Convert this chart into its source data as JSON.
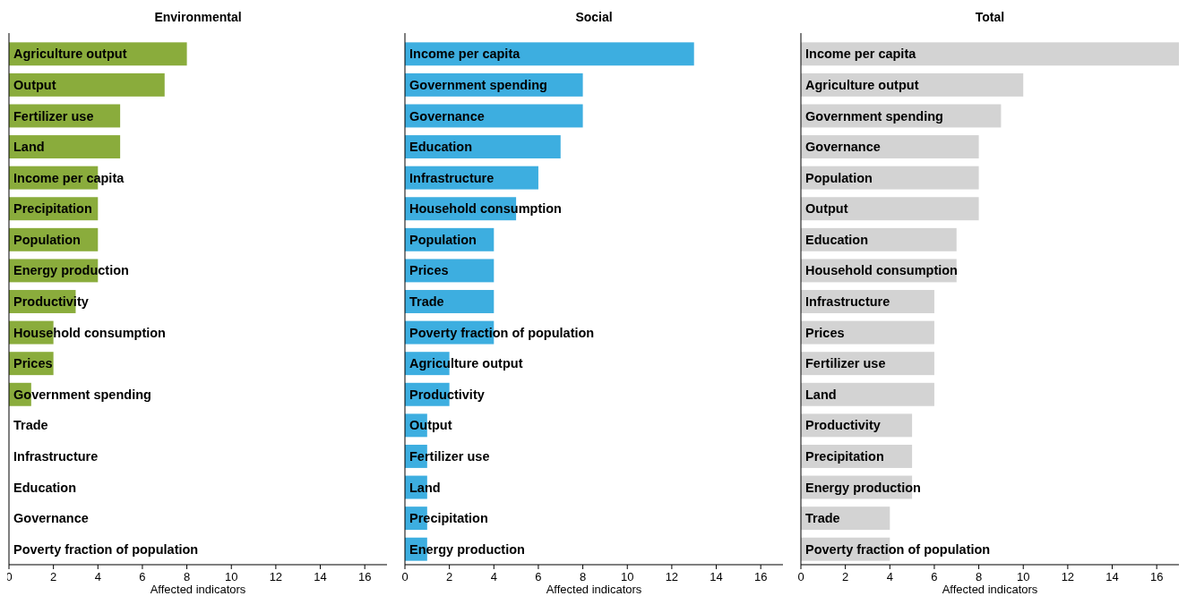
{
  "chart_data": [
    {
      "type": "bar",
      "orientation": "horizontal",
      "title": "Environmental",
      "xlabel": "Affected indicators",
      "categories": [
        "Agriculture output",
        "Output",
        "Fertilizer use",
        "Land",
        "Income per capita",
        "Precipitation",
        "Population",
        "Energy production",
        "Productivity",
        "Household consumption",
        "Prices",
        "Government spending",
        "Trade",
        "Infrastructure",
        "Education",
        "Governance",
        "Poverty fraction of population"
      ],
      "values": [
        8,
        7,
        5,
        5,
        4,
        4,
        4,
        4,
        3,
        2,
        2,
        1,
        0,
        0,
        0,
        0,
        0
      ],
      "color": "#8aac3c",
      "xlim": [
        0,
        17
      ],
      "xticks": [
        0,
        2,
        4,
        6,
        8,
        10,
        12,
        14,
        16
      ],
      "grid": false
    },
    {
      "type": "bar",
      "orientation": "horizontal",
      "title": "Social",
      "xlabel": "Affected indicators",
      "categories": [
        "Income per capita",
        "Government spending",
        "Governance",
        "Education",
        "Infrastructure",
        "Household consumption",
        "Population",
        "Prices",
        "Trade",
        "Poverty fraction of population",
        "Agriculture output",
        "Productivity",
        "Output",
        "Fertilizer use",
        "Land",
        "Precipitation",
        "Energy production"
      ],
      "values": [
        13,
        8,
        8,
        7,
        6,
        5,
        4,
        4,
        4,
        4,
        2,
        2,
        1,
        1,
        1,
        1,
        1
      ],
      "color": "#3daee0",
      "xlim": [
        0,
        17
      ],
      "xticks": [
        0,
        2,
        4,
        6,
        8,
        10,
        12,
        14,
        16
      ],
      "grid": false
    },
    {
      "type": "bar",
      "orientation": "horizontal",
      "title": "Total",
      "xlabel": "Affected indicators",
      "categories": [
        "Income per capita",
        "Agriculture output",
        "Government spending",
        "Governance",
        "Population",
        "Output",
        "Education",
        "Household consumption",
        "Infrastructure",
        "Prices",
        "Fertilizer use",
        "Land",
        "Productivity",
        "Precipitation",
        "Energy production",
        "Trade",
        "Poverty fraction of population"
      ],
      "values": [
        17,
        10,
        9,
        8,
        8,
        8,
        7,
        7,
        6,
        6,
        6,
        6,
        5,
        5,
        5,
        4,
        4
      ],
      "color": "#d3d3d3",
      "xlim": [
        0,
        17
      ],
      "xticks": [
        0,
        2,
        4,
        6,
        8,
        10,
        12,
        14,
        16
      ],
      "grid": false
    }
  ]
}
